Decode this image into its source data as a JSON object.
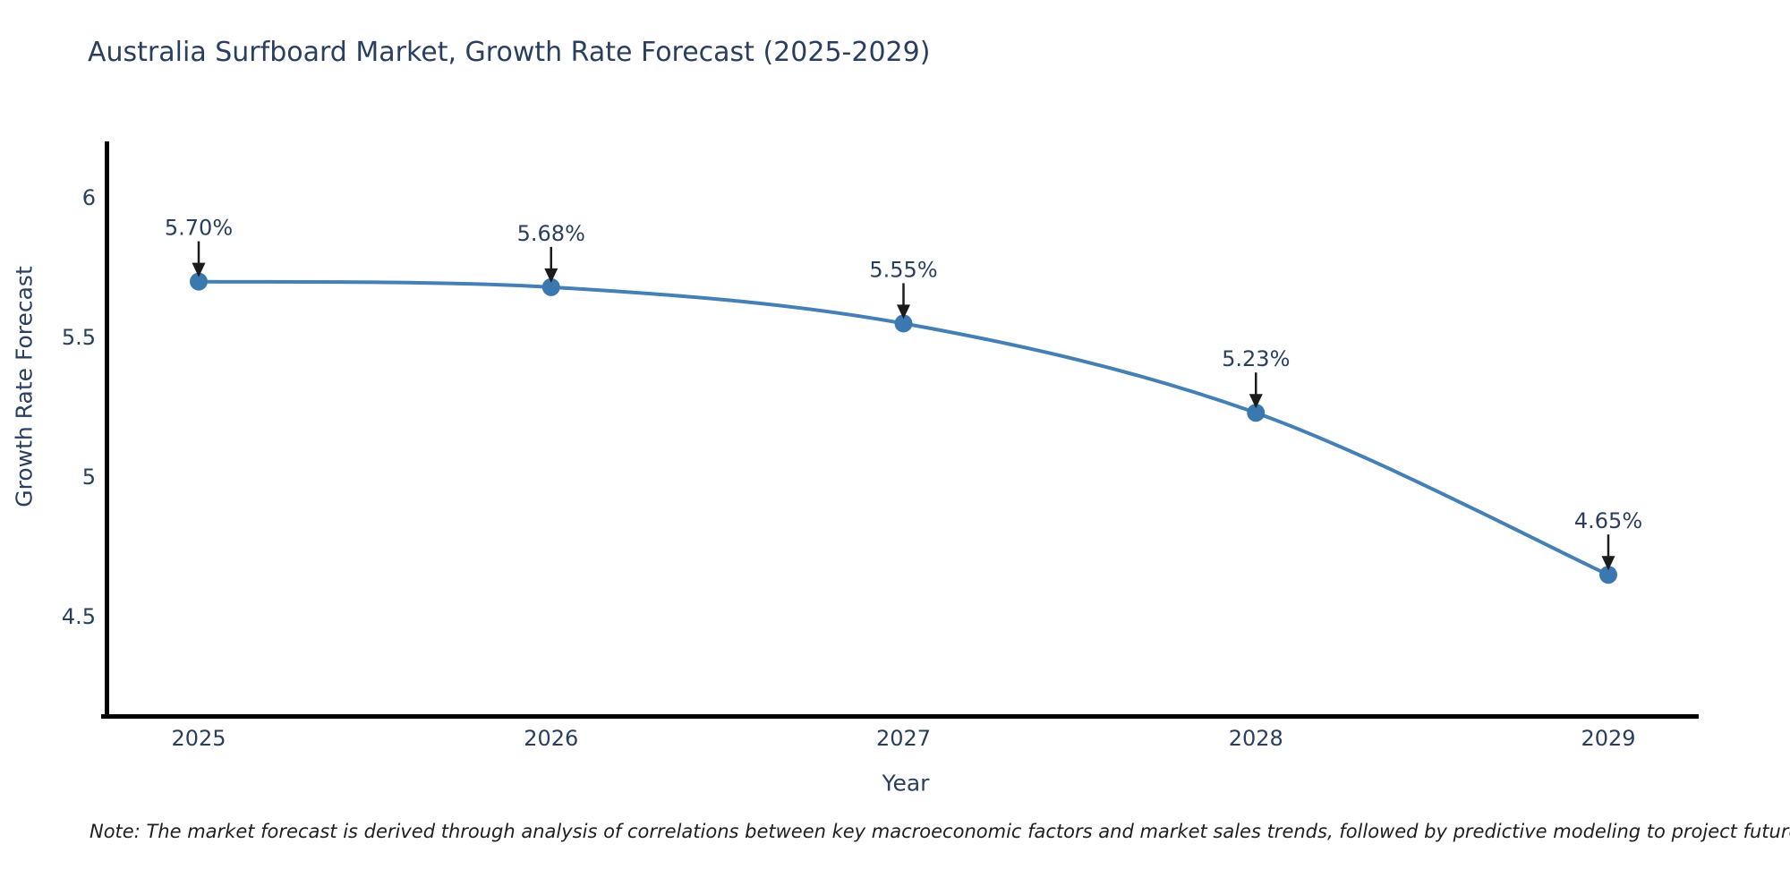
{
  "chart_data": {
    "type": "line",
    "title": "Australia Surfboard Market, Growth Rate Forecast (2025-2029)",
    "xlabel": "Year",
    "ylabel": "Growth Rate Forecast",
    "x": [
      2025,
      2026,
      2027,
      2028,
      2029
    ],
    "series": [
      {
        "name": "Growth Rate Forecast",
        "values": [
          5.7,
          5.68,
          5.55,
          5.23,
          4.65
        ]
      }
    ],
    "data_labels": [
      "5.70%",
      "5.68%",
      "5.55%",
      "5.23%",
      "4.65%"
    ],
    "x_tick_labels": [
      "2025",
      "2026",
      "2027",
      "2028",
      "2029"
    ],
    "y_tick_labels": [
      "6",
      "5.5",
      "5",
      "4.5"
    ],
    "y_tick_values": [
      6,
      5.5,
      5,
      4.5
    ],
    "ylim": [
      4.14,
      6.2
    ],
    "grid": false,
    "legend": "none",
    "line_shape": "spline",
    "annotations_have_arrows": true,
    "colors": {
      "line": "#4580b4",
      "marker": "#3b78b0",
      "text": "#2a3f5f",
      "axis": "#000000",
      "arrow": "#1c1c1c",
      "note_text": "#1f1f1f",
      "background": "#ffffff"
    }
  },
  "note": "Note: The market forecast is derived through analysis of correlations between key macroeconomic factors and market sales trends, followed by predictive modeling to project future sales"
}
